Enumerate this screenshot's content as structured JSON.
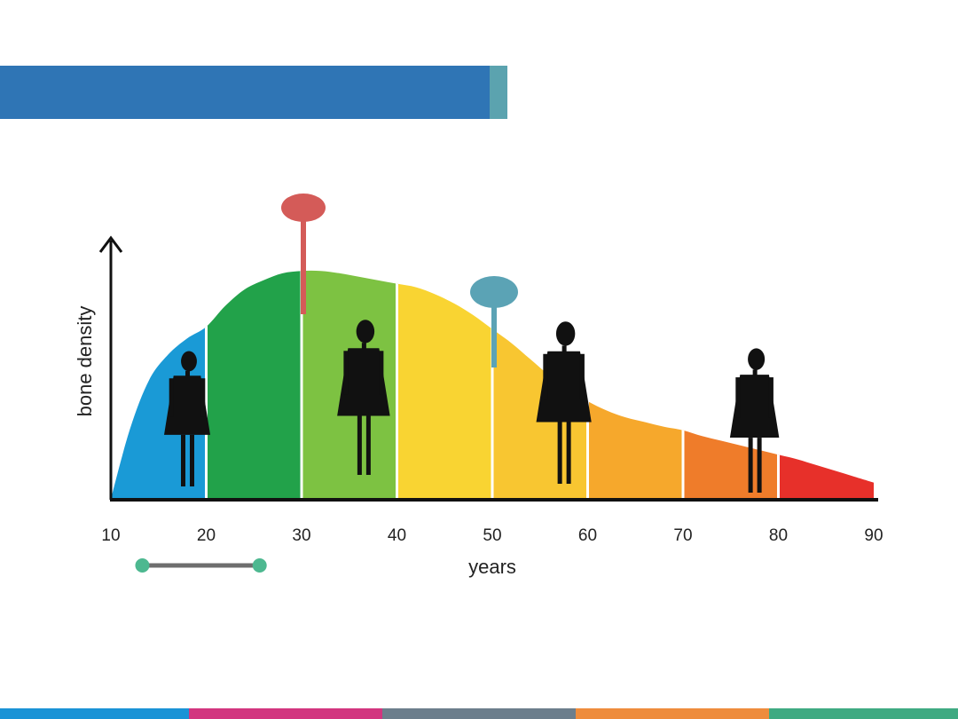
{
  "slide": {
    "title_bar_color": "#2F75B5",
    "title_accent_color": "#5BA3AF"
  },
  "chart_data": {
    "type": "area",
    "title": "",
    "xlabel": "years",
    "ylabel": "bone density",
    "xlim": [
      10,
      90
    ],
    "xticks": [
      "10",
      "20",
      "30",
      "40",
      "50",
      "60",
      "70",
      "80",
      "90"
    ],
    "y_axis_arrow": true,
    "curve": {
      "x": [
        10,
        12,
        14,
        16,
        18,
        20,
        22,
        24,
        26,
        28,
        30,
        32,
        34,
        36,
        38,
        40,
        42,
        44,
        46,
        48,
        50,
        52,
        54,
        56,
        58,
        60,
        62,
        64,
        66,
        68,
        70,
        72,
        74,
        76,
        78,
        80,
        82,
        84,
        86,
        88,
        90
      ],
      "y": [
        0,
        30,
        51,
        62,
        69,
        74,
        83,
        90,
        94,
        97,
        98,
        98,
        97,
        95.5,
        94,
        92.5,
        91,
        88,
        84,
        79,
        73,
        67,
        60,
        53,
        47,
        42,
        38,
        35,
        33,
        31,
        29.5,
        27,
        25,
        23,
        21,
        19,
        17,
        14.5,
        12,
        9.5,
        7
      ]
    },
    "bands": [
      {
        "range": [
          10,
          20
        ],
        "color": "#1A9AD6"
      },
      {
        "range": [
          20,
          30
        ],
        "color": "#22A24A"
      },
      {
        "range": [
          30,
          40
        ],
        "color": "#7DC242"
      },
      {
        "range": [
          40,
          50
        ],
        "color": "#F9D432"
      },
      {
        "range": [
          50,
          60
        ],
        "color": "#F8C631"
      },
      {
        "range": [
          60,
          70
        ],
        "color": "#F6A82C"
      },
      {
        "range": [
          70,
          80
        ],
        "color": "#EF7C2A"
      },
      {
        "range": [
          80,
          90
        ],
        "color": "#E7302A"
      }
    ],
    "markers": [
      {
        "x": 30,
        "color": "#D45B58"
      },
      {
        "x": 50,
        "color": "#5BA3B5"
      }
    ],
    "range_indicator": {
      "x_start": 13.3,
      "x_end": 25.6,
      "line_color": "#6E6E6E",
      "dot_color": "#4DB890"
    },
    "figures": [
      {
        "x": 18,
        "icon": "young-woman-silhouette-icon"
      },
      {
        "x": 36.5,
        "icon": "adult-woman-silhouette-icon"
      },
      {
        "x": 57.5,
        "icon": "middle-aged-woman-silhouette-icon"
      },
      {
        "x": 77.5,
        "icon": "elderly-woman-silhouette-icon"
      }
    ]
  },
  "footer": {
    "stripes": [
      "#1A93D6",
      "#D2357F",
      "#6C7E8C",
      "#EE8C3C",
      "#3FAA82"
    ]
  }
}
